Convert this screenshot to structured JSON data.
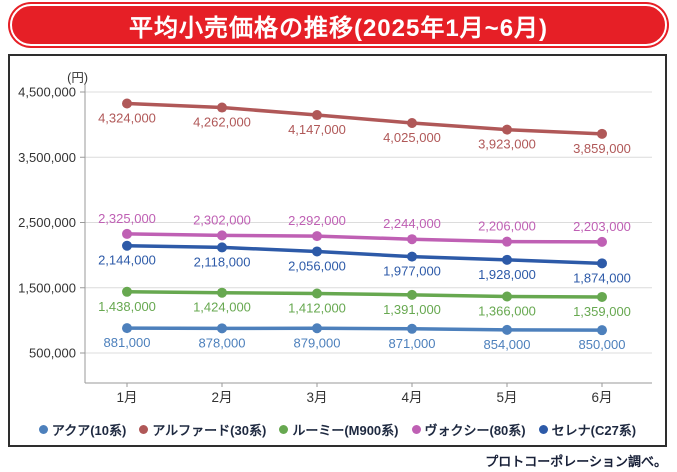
{
  "title": "平均小売価格の推移(2025年1月~6月)",
  "source_note": "プロトコーポレーション調べ。",
  "chart_data": {
    "type": "line",
    "title": "平均小売価格の推移(2025年1月~6月)",
    "unit_label": "(円)",
    "x_categories": [
      "1月",
      "2月",
      "3月",
      "4月",
      "5月",
      "6月"
    ],
    "y_ticks": [
      4500000,
      3500000,
      2500000,
      1500000,
      500000
    ],
    "ylim": [
      0,
      4550000
    ],
    "grid": true,
    "legend_position": "bottom",
    "colors": {
      "banner_red": "#e61f26",
      "axis_text": "#333333",
      "gridline": "#dcdcdc",
      "axis_line": "#9a9a9a"
    },
    "series": [
      {
        "name": "アクア(10系)",
        "color": "#4d80bc",
        "values": [
          881000,
          878000,
          879000,
          871000,
          854000,
          850000
        ],
        "value_labels": "below"
      },
      {
        "name": "アルファード(30系)",
        "color": "#b05858",
        "values": [
          4324000,
          4262000,
          4147000,
          4025000,
          3923000,
          3859000
        ],
        "value_labels": "below"
      },
      {
        "name": "ルーミー(M900系)",
        "color": "#67a850",
        "values": [
          1438000,
          1424000,
          1412000,
          1391000,
          1366000,
          1359000
        ],
        "value_labels": "below"
      },
      {
        "name": "ヴォクシー(80系)",
        "color": "#bf60b4",
        "values": [
          2325000,
          2302000,
          2292000,
          2244000,
          2206000,
          2203000
        ],
        "value_labels": "above"
      },
      {
        "name": "セレナ(C27系)",
        "color": "#2d5aa8",
        "values": [
          2144000,
          2118000,
          2056000,
          1977000,
          1928000,
          1874000
        ],
        "value_labels": "below"
      }
    ]
  }
}
